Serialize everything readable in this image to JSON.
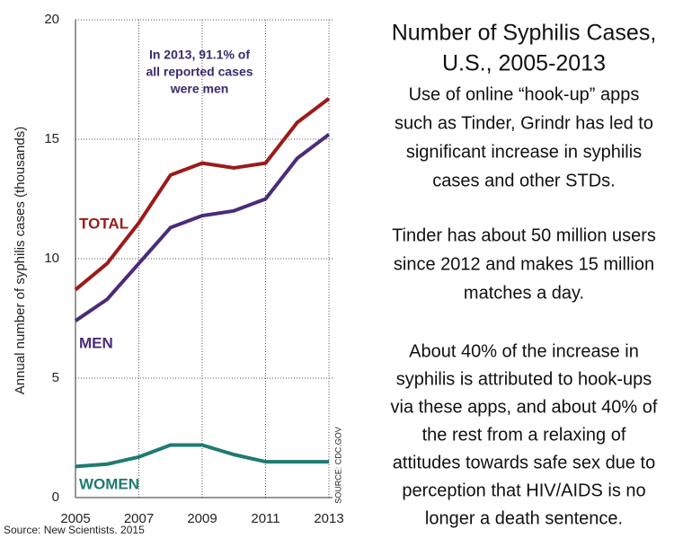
{
  "chart_data": {
    "type": "line",
    "title_lines": [
      "Number of Syphilis Cases,",
      "U.S., 2005-2013"
    ],
    "paragraphs": [
      [
        "Use of online “hook-up” apps",
        "such as Tinder, Grindr has led to",
        "significant increase in syphilis",
        "cases and other STDs."
      ],
      [
        "Tinder has about 50 million users",
        "since 2012 and makes 15 million",
        "matches a day."
      ],
      [
        "About 40% of the increase in",
        "syphilis is attributed to hook-ups",
        "via these apps, and about 40% of",
        "the rest from a relaxing of",
        "attitudes towards safe sex due to",
        "perception that HIV/AIDS is no",
        "longer a death sentence."
      ]
    ],
    "y_label": "Annual number of syphilis cases (thousands)",
    "annotation_lines": [
      "In 2013, 91.1% of",
      "all reported cases",
      "were men"
    ],
    "source_vertical": "SOURCE: CDC.GOV",
    "source": "Source: New Scientists. 2015",
    "x": [
      2005,
      2006,
      2007,
      2008,
      2009,
      2010,
      2011,
      2012,
      2013
    ],
    "series": [
      {
        "name": "TOTAL",
        "color": "#9b1b1b",
        "values": [
          8.7,
          9.8,
          11.5,
          13.5,
          14.0,
          13.8,
          14.0,
          15.7,
          16.7
        ]
      },
      {
        "name": "MEN",
        "color": "#4a2c7a",
        "values": [
          7.4,
          8.3,
          9.8,
          11.3,
          11.8,
          12.0,
          12.5,
          14.2,
          15.2
        ]
      },
      {
        "name": "WOMEN",
        "color": "#1f7a72",
        "values": [
          1.3,
          1.4,
          1.7,
          2.2,
          2.2,
          1.8,
          1.5,
          1.5,
          1.5
        ]
      }
    ],
    "xlim": [
      2005,
      2013
    ],
    "xticks": [
      2005,
      2007,
      2009,
      2011,
      2013
    ],
    "ylim": [
      0,
      20
    ],
    "yticks": [
      0,
      5,
      10,
      15,
      20
    ],
    "grid": true
  }
}
